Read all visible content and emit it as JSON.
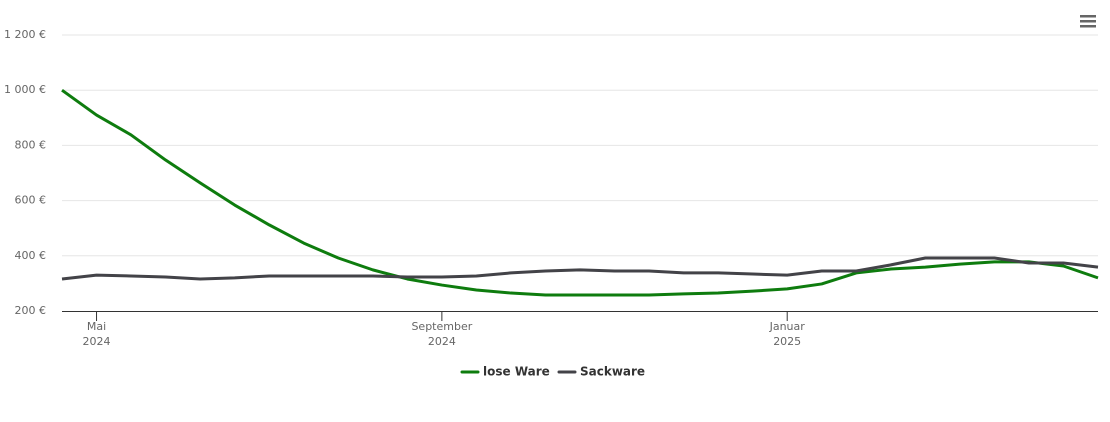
{
  "chart_data": {
    "type": "line",
    "categories": [
      null,
      "Mai 2024",
      null,
      null,
      null,
      null,
      null,
      null,
      null,
      null,
      null,
      "September 2024",
      null,
      null,
      null,
      null,
      null,
      null,
      null,
      null,
      null,
      "Januar 2025",
      null,
      null,
      null,
      null,
      null,
      null,
      null,
      null,
      null
    ],
    "series": [
      {
        "name": "lose Ware",
        "color": "#0e7c0e",
        "values": [
          1000,
          910,
          838,
          747,
          664,
          584,
          512,
          446,
          392,
          349,
          316,
          294,
          276,
          265,
          258,
          258,
          258,
          258,
          262,
          265,
          272,
          280,
          298,
          338,
          352,
          359,
          370,
          378,
          378,
          363,
          320
        ]
      },
      {
        "name": "Sackware",
        "color": "#434348",
        "values": [
          316,
          330,
          327,
          323,
          316,
          320,
          327,
          327,
          327,
          327,
          323,
          323,
          327,
          338,
          345,
          349,
          345,
          345,
          338,
          338,
          334,
          330,
          345,
          345,
          367,
          392,
          392,
          392,
          374,
          374,
          359
        ]
      }
    ],
    "ylim": [
      200,
      1200
    ],
    "yticks": [
      {
        "value": 200,
        "label": "200 €"
      },
      {
        "value": 400,
        "label": "400 €"
      },
      {
        "value": 600,
        "label": "600 €"
      },
      {
        "value": 800,
        "label": "800 €"
      },
      {
        "value": 1000,
        "label": "1 000 €"
      },
      {
        "value": 1200,
        "label": "1 200 €"
      }
    ],
    "grid": true
  }
}
